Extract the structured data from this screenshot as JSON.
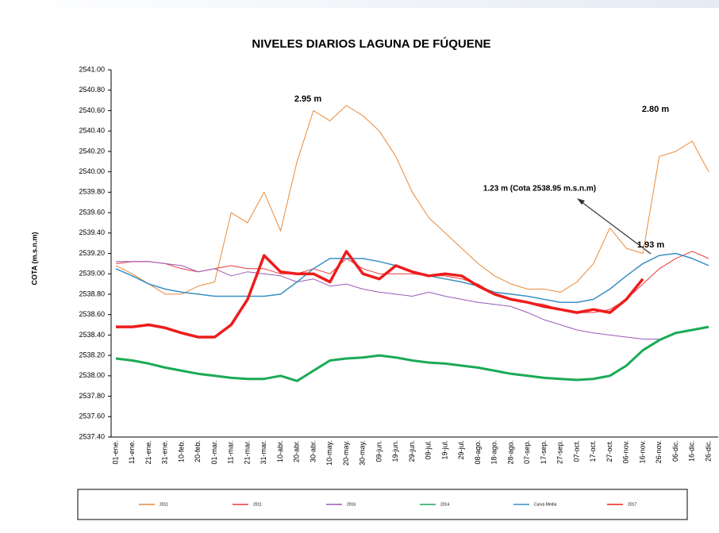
{
  "chart_data": {
    "type": "line",
    "title": "NIVELES DIARIOS LAGUNA DE FÚQUENE",
    "y_label": "COTA (m.s.n.m)",
    "categories": [
      "01-ene.",
      "11-ene.",
      "21-ene.",
      "31-ene.",
      "10-feb.",
      "20-feb.",
      "01-mar.",
      "11-mar.",
      "21-mar.",
      "31-mar.",
      "10-abr.",
      "20-abr.",
      "30-abr.",
      "10-may.",
      "20-may.",
      "30-may.",
      "09-jun.",
      "19-jun.",
      "29-jun.",
      "09-jul.",
      "19-jul.",
      "29-jul.",
      "08-ago.",
      "18-ago.",
      "28-ago.",
      "07-sep.",
      "17-sep.",
      "27-sep.",
      "07-oct.",
      "17-oct.",
      "27-oct.",
      "06-nov.",
      "16-nov.",
      "26-nov.",
      "06-dic.",
      "16-dic.",
      "26-dic."
    ],
    "series": [
      {
        "name": "2011",
        "color": "#e8893a",
        "width": 1,
        "values": [
          2539.08,
          2539.0,
          2538.9,
          2538.8,
          2538.8,
          2538.88,
          2538.92,
          2539.6,
          2539.5,
          2539.8,
          2539.42,
          2540.1,
          2540.6,
          2540.5,
          2540.65,
          2540.55,
          2540.4,
          2540.15,
          2539.8,
          2539.55,
          2539.4,
          2539.25,
          2539.1,
          2538.98,
          2538.9,
          2538.85,
          2538.85,
          2538.82,
          2538.92,
          2539.1,
          2539.45,
          2539.25,
          2539.2,
          2540.15,
          2540.2,
          2540.3,
          2540.0
        ]
      },
      {
        "name": "2011",
        "color": "#e8383d",
        "width": 1,
        "values": [
          2539.1,
          2539.12,
          2539.12,
          2539.1,
          2539.05,
          2539.02,
          2539.05,
          2539.08,
          2539.05,
          2539.05,
          2539.0,
          2539.0,
          2539.05,
          2539.0,
          2539.15,
          2539.05,
          2539.0,
          2539.0,
          2539.0,
          2538.98,
          2538.98,
          2538.95,
          2538.9,
          2538.8,
          2538.75,
          2538.72,
          2538.7,
          2538.65,
          2538.62,
          2538.62,
          2538.65,
          2538.75,
          2538.9,
          2539.05,
          2539.15,
          2539.22,
          2539.15
        ]
      },
      {
        "name": "2016",
        "color": "#9b59b6",
        "width": 1,
        "values": [
          2539.12,
          2539.12,
          2539.12,
          2539.1,
          2539.08,
          2539.02,
          2539.05,
          2538.98,
          2539.02,
          2539.0,
          2538.98,
          2538.92,
          2538.95,
          2538.88,
          2538.9,
          2538.85,
          2538.82,
          2538.8,
          2538.78,
          2538.82,
          2538.78,
          2538.75,
          2538.72,
          2538.7,
          2538.68,
          2538.62,
          2538.55,
          2538.5,
          2538.45,
          2538.42,
          2538.4,
          2538.38,
          2538.36,
          2538.36,
          null,
          null,
          null
        ]
      },
      {
        "name": "2014",
        "color": "#1aaa55",
        "width": 3,
        "values": [
          2538.17,
          2538.15,
          2538.12,
          2538.08,
          2538.05,
          2538.02,
          2538.0,
          2537.98,
          2537.97,
          2537.97,
          2538.0,
          2537.95,
          2538.05,
          2538.15,
          2538.17,
          2538.18,
          2538.2,
          2538.18,
          2538.15,
          2538.13,
          2538.12,
          2538.1,
          2538.08,
          2538.05,
          2538.02,
          2538.0,
          2537.98,
          2537.97,
          2537.96,
          2537.97,
          2538.0,
          2538.1,
          2538.25,
          2538.35,
          2538.42,
          2538.45,
          2538.48
        ]
      },
      {
        "name": "Curva Media",
        "color": "#3a8fc4",
        "width": 1.5,
        "values": [
          2539.05,
          2538.98,
          2538.9,
          2538.85,
          2538.82,
          2538.8,
          2538.78,
          2538.78,
          2538.78,
          2538.78,
          2538.8,
          2538.92,
          2539.05,
          2539.15,
          2539.15,
          2539.15,
          2539.12,
          2539.08,
          2539.02,
          2538.98,
          2538.95,
          2538.92,
          2538.88,
          2538.82,
          2538.8,
          2538.78,
          2538.75,
          2538.72,
          2538.72,
          2538.75,
          2538.85,
          2538.98,
          2539.1,
          2539.18,
          2539.2,
          2539.15,
          2539.08
        ]
      },
      {
        "name": "2017",
        "color": "#ee1c1c",
        "width": 3.5,
        "values": [
          2538.48,
          2538.48,
          2538.5,
          2538.47,
          2538.42,
          2538.38,
          2538.38,
          2538.5,
          2538.75,
          2539.18,
          2539.02,
          2539.0,
          2539.0,
          2538.92,
          2539.22,
          2539.0,
          2538.95,
          2539.08,
          2539.02,
          2538.98,
          2539.0,
          2538.98,
          2538.88,
          2538.8,
          2538.75,
          2538.72,
          2538.68,
          2538.65,
          2538.62,
          2538.65,
          2538.62,
          2538.75,
          2538.95,
          null,
          null,
          null,
          null
        ]
      }
    ],
    "ylim": [
      2537.4,
      2541.0
    ],
    "yticks": [
      {
        "value": 2537.4,
        "label": "2537.40"
      },
      {
        "value": 2537.6,
        "label": "2537.60"
      },
      {
        "value": 2537.8,
        "label": "2537.80"
      },
      {
        "value": 2538.0,
        "label": "2538.00"
      },
      {
        "value": 2538.2,
        "label": "2538.20"
      },
      {
        "value": 2538.4,
        "label": "2538.40"
      },
      {
        "value": 2538.6,
        "label": "2538.60"
      },
      {
        "value": 2538.8,
        "label": "2538.80"
      },
      {
        "value": 2539.0,
        "label": "2539.00"
      },
      {
        "value": 2539.2,
        "label": "2539.20"
      },
      {
        "value": 2539.4,
        "label": "2539.40"
      },
      {
        "value": 2539.6,
        "label": "2539.60"
      },
      {
        "value": 2539.8,
        "label": "2539.80"
      },
      {
        "value": 2540.0,
        "label": "2540.00"
      },
      {
        "value": 2540.2,
        "label": "2540.20"
      },
      {
        "value": 2540.4,
        "label": "2540.40"
      },
      {
        "value": 2540.6,
        "label": "2540.60"
      },
      {
        "value": 2540.8,
        "label": "2540.80"
      },
      {
        "value": 2541.0,
        "label": "2541.00"
      }
    ],
    "annotations": [
      "2.95 m",
      "2.80 m",
      "1.23 m (Cota 2538.95 m.s.n.m)",
      "1.93 m"
    ]
  }
}
